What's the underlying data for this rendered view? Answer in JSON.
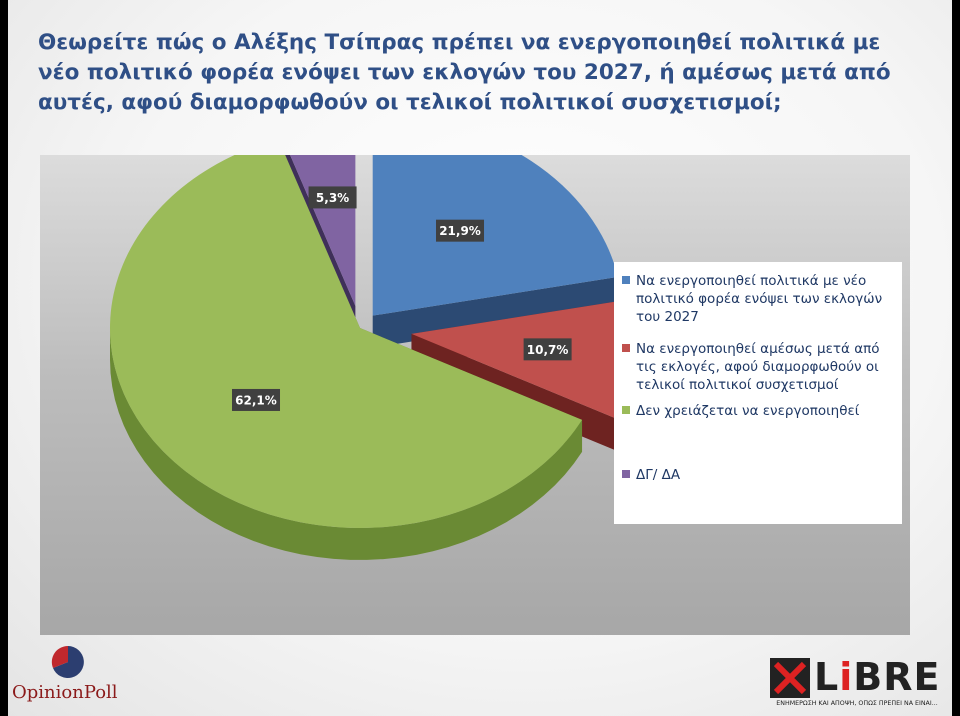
{
  "title": "Θεωρείτε πώς ο Αλέξης Τσίπρας πρέπει να ενεργοποιηθεί πολιτικά με νέο πολιτικό φορέα ενόψει των εκλογών του 2027, ή αμέσως μετά από αυτές, αφού διαμορφωθούν οι τελικοί πολιτικοί συσχετισμοί;",
  "chart_data": {
    "type": "pie",
    "style": "3d-exploded",
    "legend_position": "right",
    "slices": [
      {
        "label": "Να ενεργοποιηθεί πολιτικά με νέο πολιτικό φορέα ενόψει των εκλογών του 2027",
        "value": 21.9,
        "value_label": "21,9%",
        "color": "#4f81bd",
        "side_color": "#2c4a73"
      },
      {
        "label": "Να ενεργοποιηθεί αμέσως μετά από τις εκλογές, αφού διαμορφωθούν οι τελικοί πολιτικοί συσχετισμοί",
        "value": 10.7,
        "value_label": "10,7%",
        "color": "#c0504d",
        "side_color": "#6e2321"
      },
      {
        "label": "Δεν χρειάζεται να ενεργοποιηθεί",
        "value": 62.1,
        "value_label": "62,1%",
        "color": "#9bbb59",
        "side_color": "#6a8a34"
      },
      {
        "label": "ΔΓ/ ΔΑ",
        "value": 5.3,
        "value_label": "5,3%",
        "color": "#8064a2",
        "side_color": "#3f3059"
      }
    ]
  },
  "logos": {
    "opinion_poll": "OpinionPoll",
    "libre": "LiBRE",
    "libre_tagline": "ΕΝΗΜΕΡΩΣΗ ΚΑΙ ΑΠΟΨΗ, ΟΠΩΣ ΠΡΕΠΕΙ ΝΑ ΕΙΝΑΙ..."
  }
}
